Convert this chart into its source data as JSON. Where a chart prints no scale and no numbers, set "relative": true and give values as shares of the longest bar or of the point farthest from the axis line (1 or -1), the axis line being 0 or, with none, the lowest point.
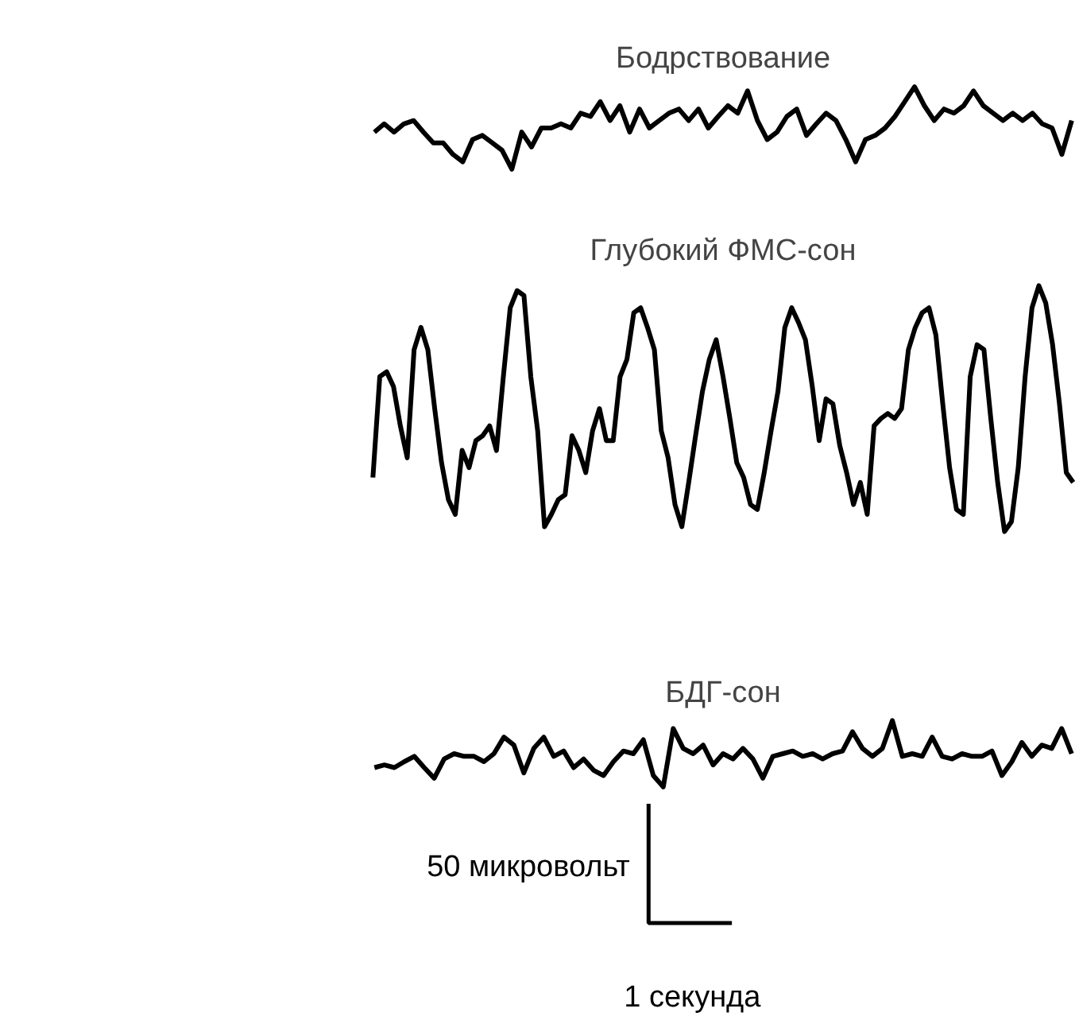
{
  "chart_data": [
    {
      "type": "line",
      "title": "Бодрствование",
      "relative": true,
      "categories": [
        null,
        null,
        null,
        null,
        null,
        null,
        null,
        null,
        null,
        null,
        null,
        null,
        null,
        null,
        null,
        null,
        null,
        null,
        null,
        null,
        null,
        null,
        null,
        null,
        null,
        null,
        null,
        null,
        null,
        null,
        null,
        null,
        null,
        null,
        null,
        null,
        null,
        null,
        null,
        null,
        null,
        null,
        null,
        null,
        null,
        null,
        null,
        null,
        null,
        null,
        null,
        null,
        null,
        null,
        null,
        null,
        null,
        null,
        null,
        null,
        null,
        null,
        null,
        null,
        null,
        null,
        null,
        null,
        null,
        null,
        null,
        null
      ],
      "series": [
        {
          "color": "#000000",
          "values": [
            0.45,
            0.55,
            0.45,
            0.55,
            0.59,
            0.45,
            0.32,
            0.32,
            0.18,
            0.09,
            0.36,
            0.41,
            0.32,
            0.23,
            0,
            0.45,
            0.27,
            0.5,
            0.5,
            0.55,
            0.5,
            0.68,
            0.64,
            0.82,
            0.59,
            0.77,
            0.45,
            0.73,
            0.5,
            0.59,
            0.68,
            0.73,
            0.59,
            0.73,
            0.5,
            0.64,
            0.77,
            0.68,
            0.95,
            0.59,
            0.36,
            0.45,
            0.64,
            0.73,
            0.41,
            0.55,
            0.68,
            0.59,
            0.36,
            0.09,
            0.36,
            0.41,
            0.5,
            0.64,
            0.82,
            1,
            0.77,
            0.59,
            0.73,
            0.68,
            0.77,
            0.95,
            0.77,
            0.68,
            0.59,
            0.68,
            0.59,
            0.68,
            0.55,
            0.5,
            0.18,
            0.59
          ]
        }
      ]
    },
    {
      "type": "line",
      "title": "Глубокий ФМС-сон",
      "relative": true,
      "categories": [
        null,
        null,
        null,
        null,
        null,
        null,
        null,
        null,
        null,
        null,
        null,
        null,
        null,
        null,
        null,
        null,
        null,
        null,
        null,
        null,
        null,
        null,
        null,
        null,
        null,
        null,
        null,
        null,
        null,
        null,
        null,
        null,
        null,
        null,
        null,
        null,
        null,
        null,
        null,
        null,
        null,
        null,
        null,
        null,
        null,
        null,
        null,
        null,
        null,
        null,
        null,
        null,
        null,
        null,
        null,
        null,
        null,
        null,
        null,
        null,
        null,
        null,
        null,
        null,
        null,
        null,
        null,
        null,
        null,
        null,
        null,
        null,
        null,
        null,
        null,
        null,
        null,
        null,
        null,
        null,
        null,
        null,
        null,
        null,
        null,
        null,
        null,
        null,
        null,
        null,
        null,
        null,
        null,
        null,
        null,
        null,
        null,
        null,
        null,
        null,
        null,
        null,
        null
      ],
      "series": [
        {
          "color": "#000000",
          "values": [
            0.22,
            0.63,
            0.65,
            0.59,
            0.43,
            0.3,
            0.74,
            0.83,
            0.74,
            0.5,
            0.28,
            0.13,
            0.07,
            0.33,
            0.26,
            0.37,
            0.39,
            0.43,
            0.33,
            0.63,
            0.91,
            0.98,
            0.96,
            0.63,
            0.41,
            0.02,
            0.07,
            0.13,
            0.15,
            0.39,
            0.33,
            0.24,
            0.41,
            0.5,
            0.37,
            0.37,
            0.63,
            0.7,
            0.89,
            0.91,
            0.83,
            0.74,
            0.41,
            0.3,
            0.11,
            0.02,
            0.2,
            0.39,
            0.57,
            0.7,
            0.78,
            0.63,
            0.46,
            0.28,
            0.22,
            0.11,
            0.09,
            0.24,
            0.41,
            0.57,
            0.83,
            0.91,
            0.85,
            0.78,
            0.59,
            0.37,
            0.54,
            0.52,
            0.35,
            0.24,
            0.11,
            0.2,
            0.07,
            0.43,
            0.46,
            0.48,
            0.46,
            0.5,
            0.74,
            0.83,
            0.89,
            0.91,
            0.8,
            0.52,
            0.26,
            0.09,
            0.07,
            0.63,
            0.76,
            0.74,
            0.46,
            0.2,
            0,
            0.04,
            0.26,
            0.63,
            0.91,
            1,
            0.93,
            0.76,
            0.52,
            0.24,
            0.2
          ]
        }
      ]
    },
    {
      "type": "line",
      "title": "БДГ-сон",
      "relative": true,
      "annotations": [
        "50 микровольт",
        "1 секунда"
      ],
      "categories": [
        null,
        null,
        null,
        null,
        null,
        null,
        null,
        null,
        null,
        null,
        null,
        null,
        null,
        null,
        null,
        null,
        null,
        null,
        null,
        null,
        null,
        null,
        null,
        null,
        null,
        null,
        null,
        null,
        null,
        null,
        null,
        null,
        null,
        null,
        null,
        null,
        null,
        null,
        null,
        null,
        null,
        null,
        null,
        null,
        null,
        null,
        null,
        null,
        null,
        null,
        null,
        null,
        null,
        null,
        null,
        null,
        null,
        null,
        null,
        null,
        null,
        null,
        null,
        null,
        null,
        null,
        null,
        null,
        null,
        null,
        null
      ],
      "series": [
        {
          "color": "#000000",
          "values": [
            0.29,
            0.33,
            0.29,
            0.38,
            0.46,
            0.29,
            0.13,
            0.42,
            0.5,
            0.46,
            0.46,
            0.38,
            0.5,
            0.75,
            0.63,
            0.21,
            0.58,
            0.75,
            0.46,
            0.54,
            0.29,
            0.42,
            0.25,
            0.17,
            0.38,
            0.54,
            0.5,
            0.71,
            0.17,
            0,
            0.88,
            0.58,
            0.5,
            0.63,
            0.33,
            0.5,
            0.42,
            0.58,
            0.42,
            0.13,
            0.46,
            0.5,
            0.54,
            0.46,
            0.5,
            0.42,
            0.5,
            0.54,
            0.83,
            0.58,
            0.46,
            0.58,
            1,
            0.46,
            0.5,
            0.46,
            0.75,
            0.46,
            0.42,
            0.5,
            0.46,
            0.46,
            0.54,
            0.17,
            0.38,
            0.67,
            0.46,
            0.63,
            0.58,
            0.88,
            0.5
          ]
        }
      ]
    }
  ]
}
